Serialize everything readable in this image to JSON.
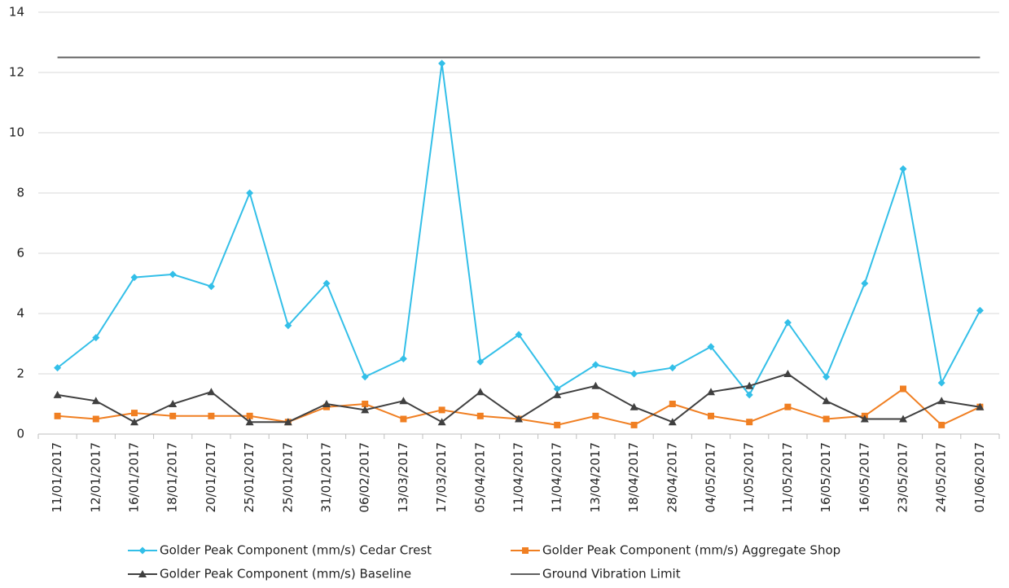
{
  "chart_data": {
    "type": "line",
    "categories": [
      "11/01/2017",
      "12/01/2017",
      "16/01/2017",
      "18/01/2017",
      "20/01/2017",
      "25/01/2017",
      "25/01/2017",
      "31/01/2017",
      "06/02/2017",
      "13/03/2017",
      "17/03/2017",
      "05/04/2017",
      "11/04/2017",
      "11/04/2017",
      "13/04/2017",
      "18/04/2017",
      "28/04/2017",
      "04/05/2017",
      "11/05/2017",
      "11/05/2017",
      "16/05/2017",
      "16/05/2017",
      "23/05/2017",
      "24/05/2017",
      "01/06/2017"
    ],
    "series": [
      {
        "name": "Golder Peak Component (mm/s) Cedar Crest",
        "color": "#33bfe8",
        "marker": "diamond",
        "values": [
          2.2,
          3.2,
          5.2,
          5.3,
          4.9,
          8.0,
          3.6,
          5.0,
          1.9,
          2.5,
          12.3,
          2.4,
          3.3,
          1.5,
          2.3,
          2.0,
          2.2,
          2.9,
          1.3,
          3.7,
          1.9,
          5.0,
          8.8,
          1.7,
          4.1
        ]
      },
      {
        "name": "Golder Peak Component (mm/s) Aggregate Shop",
        "color": "#f07f22",
        "marker": "square",
        "values": [
          0.6,
          0.5,
          0.7,
          0.6,
          0.6,
          0.6,
          0.4,
          0.9,
          1.0,
          0.5,
          0.8,
          0.6,
          0.5,
          0.3,
          0.6,
          0.3,
          1.0,
          0.6,
          0.4,
          0.9,
          0.5,
          0.6,
          1.5,
          0.3,
          0.9
        ]
      },
      {
        "name": "Golder Peak Component (mm/s) Baseline",
        "color": "#404040",
        "marker": "triangle",
        "values": [
          1.3,
          1.1,
          0.4,
          1.0,
          1.4,
          0.4,
          0.4,
          1.0,
          0.8,
          1.1,
          0.4,
          1.4,
          0.5,
          1.3,
          1.6,
          0.9,
          0.4,
          1.4,
          1.6,
          2.0,
          1.1,
          0.5,
          0.5,
          1.1,
          0.9
        ]
      },
      {
        "name": "Ground Vibration Limit",
        "color": "#606060",
        "marker": "none",
        "values": [
          12.5,
          12.5,
          12.5,
          12.5,
          12.5,
          12.5,
          12.5,
          12.5,
          12.5,
          12.5,
          12.5,
          12.5,
          12.5,
          12.5,
          12.5,
          12.5,
          12.5,
          12.5,
          12.5,
          12.5,
          12.5,
          12.5,
          12.5,
          12.5,
          12.5
        ]
      }
    ],
    "ylim": [
      0,
      14
    ],
    "yticks": [
      0,
      2,
      4,
      6,
      8,
      10,
      12,
      14
    ],
    "grid": true,
    "legend": "bottom"
  }
}
